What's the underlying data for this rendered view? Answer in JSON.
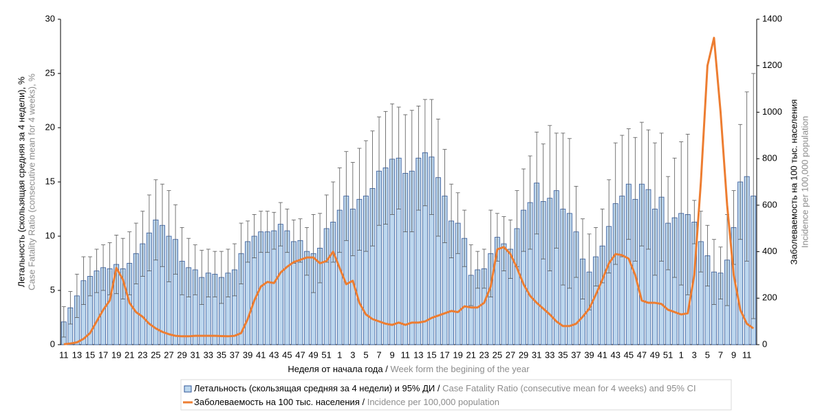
{
  "chart_data": {
    "type": "bar_line",
    "categories": [
      "11",
      null,
      "13",
      null,
      "15",
      null,
      "17",
      null,
      "19",
      null,
      "21",
      null,
      "23",
      null,
      "25",
      null,
      "27",
      null,
      "29",
      null,
      "31",
      null,
      "33",
      null,
      "35",
      null,
      "37",
      null,
      "39",
      null,
      "41",
      null,
      "43",
      null,
      "45",
      null,
      "47",
      null,
      "49",
      null,
      "51",
      null,
      "1",
      null,
      "3",
      null,
      "5",
      null,
      "7",
      null,
      "9",
      null,
      "11",
      null,
      "13",
      null,
      "15",
      null,
      "17",
      null,
      "19",
      null,
      "21",
      null,
      "23",
      null,
      "25",
      null,
      "27",
      null,
      "29",
      null,
      "31",
      null,
      "33",
      null,
      "35",
      null,
      "37",
      null,
      "39",
      null,
      "41",
      null,
      "43",
      null,
      "45",
      null,
      "47",
      null,
      "49",
      null,
      "51",
      null,
      "1",
      null,
      "3",
      null,
      "5",
      null,
      "7",
      null,
      "9",
      null,
      "11",
      null
    ],
    "x_label": "Неделя от начала года /",
    "x_label_en": "Week form the begining of the year",
    "y_label": "Летальность (скользящая средняя за 4 недели), %",
    "y_label_en": "Case Fatality Ratio (consecutive mean for 4 weeks), %",
    "y2_label": "Заболеваемость на 100 тыс. населения",
    "y2_label_en": "Incidence per 100,000 population",
    "ylim": [
      0,
      30
    ],
    "yticks": [
      0,
      5,
      10,
      15,
      20,
      25,
      30
    ],
    "y2lim": [
      0,
      1400
    ],
    "y2ticks": [
      0,
      200,
      400,
      600,
      800,
      1000,
      1200,
      1400
    ],
    "series": [
      {
        "name": "Летальность (скользящая средняя за 4 недели) и 95% ДИ /",
        "name_en": "Case Fatality Ratio (consecutive mean for 4 weeks) and 95% CI",
        "kind": "bar",
        "color": "#bdd7ee",
        "edge": "#2f5597",
        "values": [
          2.1,
          3.4,
          4.5,
          5.9,
          6.3,
          6.8,
          7.1,
          7.0,
          7.4,
          7.0,
          7.5,
          8.4,
          9.3,
          10.3,
          11.5,
          11.0,
          10.0,
          9.7,
          7.7,
          7.1,
          6.9,
          6.2,
          6.6,
          6.5,
          6.2,
          6.6,
          6.9,
          8.4,
          9.5,
          10.0,
          10.4,
          10.4,
          10.5,
          11.1,
          10.5,
          9.5,
          9.6,
          8.6,
          8.4,
          8.9,
          10.7,
          11.3,
          12.4,
          13.7,
          12.5,
          13.4,
          13.7,
          14.4,
          16.0,
          16.3,
          17.1,
          17.2,
          15.8,
          16.0,
          17.2,
          17.7,
          17.3,
          15.4,
          13.7,
          11.4,
          11.2,
          9.8,
          6.4,
          6.9,
          7.0,
          8.4,
          9.9,
          9.3,
          8.8,
          10.7,
          12.4,
          13.1,
          14.9,
          13.2,
          13.5,
          14.2,
          12.5,
          12.1,
          10.4,
          7.9,
          6.7,
          8.1,
          9.1,
          10.9,
          13.0,
          13.7,
          14.8,
          13.4,
          14.8,
          14.3,
          12.5,
          13.6,
          11.2,
          11.7,
          12.1,
          12.0,
          11.3,
          9.5,
          8.2,
          6.7,
          6.6,
          7.8,
          10.8,
          15.0,
          15.5,
          13.7
        ],
        "error": [
          1.4,
          1.5,
          2.0,
          2.2,
          1.8,
          2.0,
          2.1,
          2.4,
          2.7,
          2.8,
          2.9,
          2.8,
          3.0,
          3.5,
          3.7,
          3.8,
          4.2,
          3.2,
          3.1,
          2.7,
          2.3,
          2.5,
          2.2,
          2.1,
          2.4,
          2.2,
          2.4,
          2.8,
          1.9,
          2.0,
          1.9,
          1.9,
          1.7,
          2.0,
          2.0,
          2.0,
          2.0,
          2.2,
          3.6,
          3.2,
          3.1,
          3.7,
          3.9,
          4.1,
          4.3,
          4.7,
          5.1,
          5.3,
          5.0,
          5.2,
          5.1,
          4.7,
          5.4,
          5.6,
          4.8,
          4.9,
          5.3,
          5.4,
          4.3,
          3.4,
          2.8,
          2.6,
          2.8,
          1.7,
          1.8,
          4.0,
          2.2,
          2.5,
          2.7,
          3.5,
          3.8,
          4.3,
          4.7,
          5.3,
          6.7,
          5.3,
          7.0,
          6.9,
          4.2,
          3.7,
          3.5,
          2.7,
          3.4,
          4.3,
          5.6,
          5.6,
          5.1,
          5.7,
          5.7,
          5.5,
          6.1,
          5.9,
          4.3,
          5.5,
          6.6,
          7.4,
          2.0,
          2.8,
          2.8,
          3.0,
          2.4,
          4.2,
          3.4,
          5.3,
          7.8,
          11.3
        ]
      },
      {
        "name": "Заболеваемость на 100 тыс. населения /",
        "name_en": "Incidence per 100,000 population",
        "kind": "line",
        "axis": "y2",
        "color": "#ed7d31",
        "values": [
          2,
          5,
          10,
          25,
          50,
          100,
          150,
          190,
          330,
          280,
          180,
          140,
          120,
          90,
          70,
          55,
          45,
          38,
          36,
          36,
          38,
          38,
          38,
          38,
          37,
          36,
          38,
          50,
          110,
          190,
          250,
          270,
          265,
          310,
          335,
          355,
          365,
          375,
          375,
          350,
          360,
          400,
          330,
          260,
          275,
          180,
          130,
          110,
          100,
          90,
          85,
          95,
          85,
          95,
          95,
          100,
          115,
          125,
          135,
          145,
          140,
          165,
          160,
          160,
          180,
          250,
          410,
          420,
          390,
          330,
          260,
          210,
          180,
          155,
          130,
          100,
          80,
          80,
          90,
          120,
          155,
          215,
          280,
          350,
          390,
          385,
          370,
          300,
          190,
          180,
          180,
          175,
          150,
          140,
          130,
          135,
          300,
          700,
          1200,
          1320,
          1000,
          600,
          300,
          150,
          90,
          70
        ]
      }
    ]
  }
}
